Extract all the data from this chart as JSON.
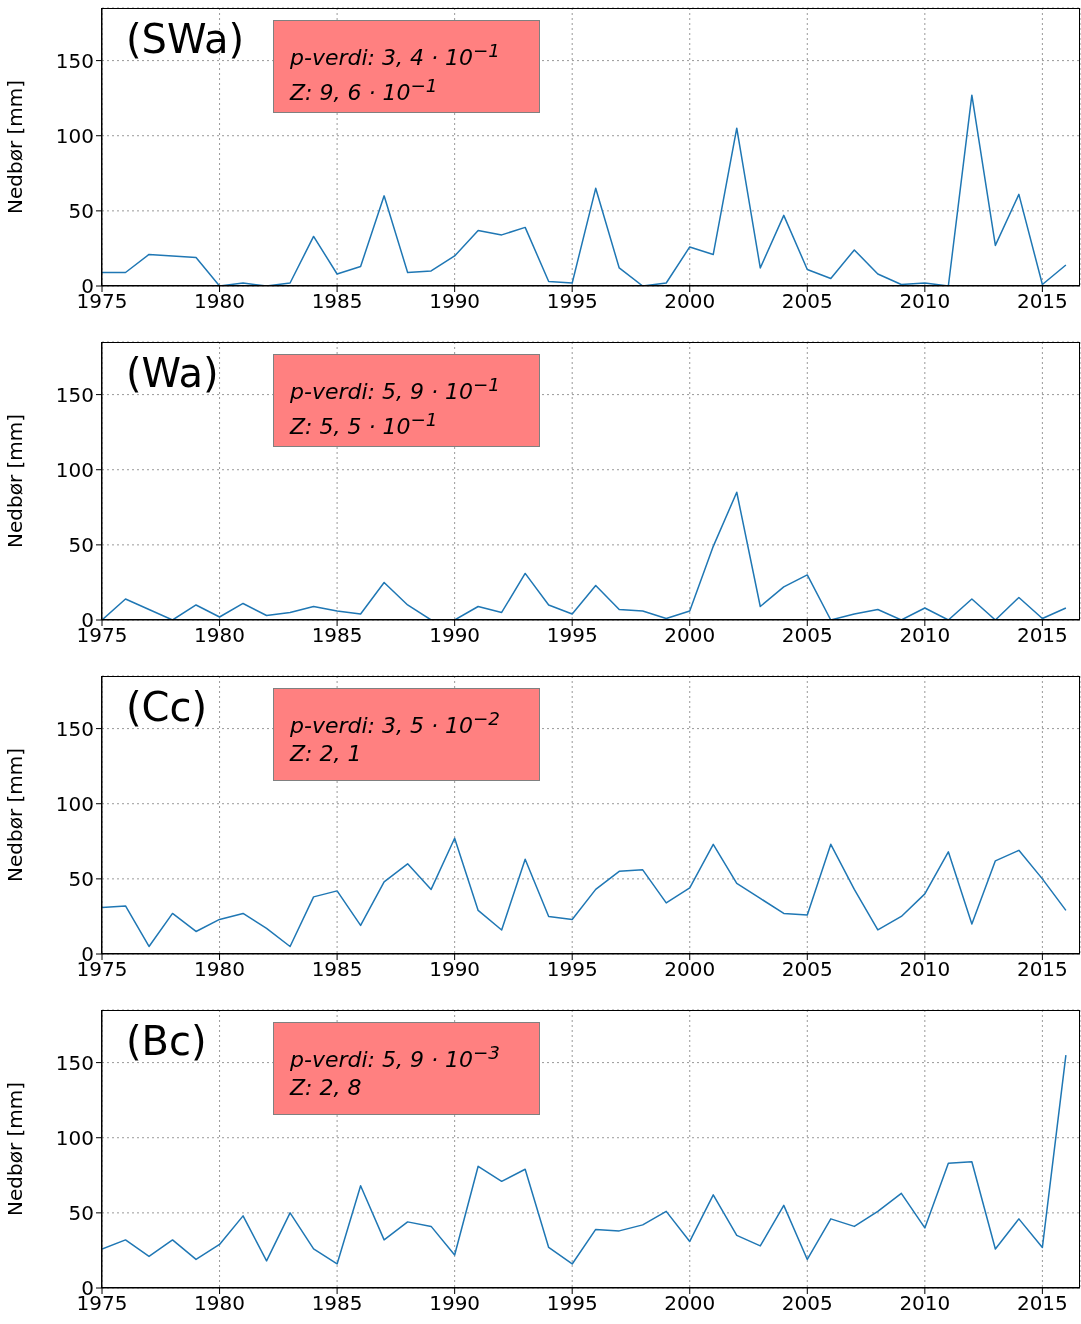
{
  "chart_data": [
    {
      "type": "line",
      "ylabel": "Nedbør [mm]",
      "annotations": [
        "(SWa)",
        "p-verdi: 3, 4 · 10$^{−1}$",
        "Z: 9, 6 · 10$^{−1}$"
      ],
      "x": [
        1975,
        1976,
        1977,
        1978,
        1979,
        1980,
        1981,
        1982,
        1983,
        1984,
        1985,
        1986,
        1987,
        1988,
        1989,
        1990,
        1991,
        1992,
        1993,
        1994,
        1995,
        1996,
        1997,
        1998,
        1999,
        2000,
        2001,
        2002,
        2003,
        2004,
        2005,
        2006,
        2007,
        2008,
        2009,
        2010,
        2011,
        2012,
        2013,
        2014,
        2015,
        2016
      ],
      "series": [
        {
          "color": "#1f77b4",
          "values": [
            9,
            9,
            21,
            20,
            19,
            0,
            2,
            0,
            2,
            33,
            8,
            13,
            60,
            9,
            10,
            20,
            37,
            34,
            39,
            3,
            2,
            65,
            12,
            0,
            2,
            26,
            21,
            105,
            12,
            47,
            11,
            5,
            24,
            8,
            1,
            2,
            0,
            127,
            27,
            61,
            1,
            14
          ]
        }
      ],
      "xlim": [
        1975,
        2016.6
      ],
      "xticks": [
        1975,
        1980,
        1985,
        1990,
        1995,
        2000,
        2005,
        2010,
        2015
      ],
      "ylim": [
        0,
        185
      ],
      "yticks": [
        0,
        50,
        100,
        150
      ],
      "grid": true,
      "legend": false,
      "marker": "none",
      "line_style": "solid"
    },
    {
      "type": "line",
      "ylabel": "Nedbør [mm]",
      "annotations": [
        "(Wa)",
        "p-verdi: 5, 9 · 10$^{−1}$",
        "Z: 5, 5 · 10$^{−1}$"
      ],
      "x": [
        1975,
        1976,
        1977,
        1978,
        1979,
        1980,
        1981,
        1982,
        1983,
        1984,
        1985,
        1986,
        1987,
        1988,
        1989,
        1990,
        1991,
        1992,
        1993,
        1994,
        1995,
        1996,
        1997,
        1998,
        1999,
        2000,
        2001,
        2002,
        2003,
        2004,
        2005,
        2006,
        2007,
        2008,
        2009,
        2010,
        2011,
        2012,
        2013,
        2014,
        2015,
        2016
      ],
      "series": [
        {
          "color": "#1f77b4",
          "values": [
            0,
            14,
            7,
            0,
            10,
            2,
            11,
            3,
            5,
            9,
            6,
            4,
            25,
            10,
            0,
            0,
            9,
            5,
            31,
            10,
            4,
            23,
            7,
            6,
            1,
            6,
            49,
            85,
            9,
            22,
            30,
            0,
            4,
            7,
            0,
            8,
            0,
            14,
            0,
            15,
            1,
            8
          ]
        }
      ],
      "xlim": [
        1975,
        2016.6
      ],
      "xticks": [
        1975,
        1980,
        1985,
        1990,
        1995,
        2000,
        2005,
        2010,
        2015
      ],
      "ylim": [
        0,
        185
      ],
      "yticks": [
        0,
        50,
        100,
        150
      ],
      "grid": true,
      "legend": false,
      "marker": "none",
      "line_style": "solid"
    },
    {
      "type": "line",
      "ylabel": "Nedbør [mm]",
      "annotations": [
        "(Cc)",
        "p-verdi: 3, 5 · 10$^{−2}$",
        "Z: 2, 1"
      ],
      "x": [
        1975,
        1976,
        1977,
        1978,
        1979,
        1980,
        1981,
        1982,
        1983,
        1984,
        1985,
        1986,
        1987,
        1988,
        1989,
        1990,
        1991,
        1992,
        1993,
        1994,
        1995,
        1996,
        1997,
        1998,
        1999,
        2000,
        2001,
        2002,
        2003,
        2004,
        2005,
        2006,
        2007,
        2008,
        2009,
        2010,
        2011,
        2012,
        2013,
        2014,
        2015,
        2016
      ],
      "series": [
        {
          "color": "#1f77b4",
          "values": [
            31,
            32,
            5,
            27,
            15,
            23,
            27,
            17,
            5,
            38,
            42,
            19,
            48,
            60,
            43,
            77,
            29,
            16,
            63,
            25,
            23,
            43,
            55,
            56,
            34,
            44,
            73,
            47,
            37,
            27,
            26,
            73,
            43,
            16,
            25,
            40,
            68,
            20,
            62,
            69,
            50,
            29
          ]
        }
      ],
      "xlim": [
        1975,
        2016.6
      ],
      "xticks": [
        1975,
        1980,
        1985,
        1990,
        1995,
        2000,
        2005,
        2010,
        2015
      ],
      "ylim": [
        0,
        185
      ],
      "yticks": [
        0,
        50,
        100,
        150
      ],
      "grid": true,
      "legend": false,
      "marker": "none",
      "line_style": "solid"
    },
    {
      "type": "line",
      "ylabel": "Nedbør [mm]",
      "annotations": [
        "(Bc)",
        "p-verdi: 5, 9 · 10$^{−3}$",
        "Z: 2, 8"
      ],
      "x": [
        1975,
        1976,
        1977,
        1978,
        1979,
        1980,
        1981,
        1982,
        1983,
        1984,
        1985,
        1986,
        1987,
        1988,
        1989,
        1990,
        1991,
        1992,
        1993,
        1994,
        1995,
        1996,
        1997,
        1998,
        1999,
        2000,
        2001,
        2002,
        2003,
        2004,
        2005,
        2006,
        2007,
        2008,
        2009,
        2010,
        2011,
        2012,
        2013,
        2014,
        2015,
        2016
      ],
      "series": [
        {
          "color": "#1f77b4",
          "values": [
            26,
            32,
            21,
            32,
            19,
            29,
            48,
            18,
            50,
            26,
            16,
            68,
            32,
            44,
            41,
            22,
            81,
            71,
            79,
            27,
            16,
            39,
            38,
            42,
            51,
            31,
            62,
            35,
            28,
            55,
            19,
            46,
            41,
            51,
            63,
            40,
            83,
            84,
            26,
            46,
            27,
            155
          ]
        }
      ],
      "xlim": [
        1975,
        2016.6
      ],
      "xticks": [
        1975,
        1980,
        1985,
        1990,
        1995,
        2000,
        2005,
        2010,
        2015
      ],
      "ylim": [
        0,
        185
      ],
      "yticks": [
        0,
        50,
        100,
        150
      ],
      "grid": true,
      "legend": false,
      "marker": "none",
      "line_style": "solid"
    }
  ]
}
